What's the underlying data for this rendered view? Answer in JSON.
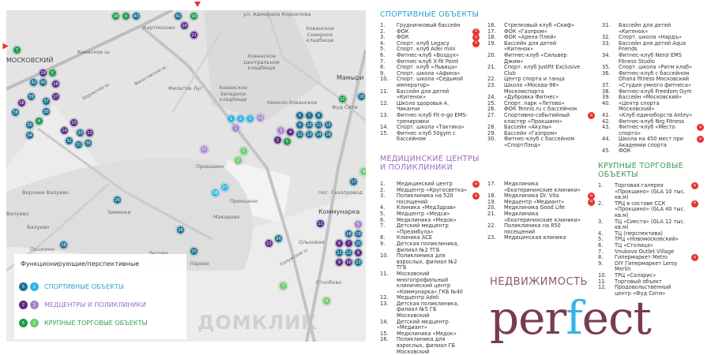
{
  "colors": {
    "sport_dark": "#1c6f90",
    "sport_light": "#2bb5e8",
    "med_dark": "#5a2a83",
    "med_light": "#a586cc",
    "shop_dark": "#1f9a48",
    "shop_light": "#6dcf6d",
    "sport_title": "#2aa3cb",
    "med_title": "#9a6cc2",
    "shop_title": "#3a9b5b",
    "perspective_badge": "#e8322f"
  },
  "map": {
    "places": [
      "Картмазово",
      "Киевское ш.",
      "Филатов Луг",
      "МОСКОВСКИЙ",
      "Хованское Северное кладбище",
      "Хованское Центральное кладбище",
      "Хованское Западное кладбище",
      "Мамыри",
      "Фуд Сити",
      "Николо-Хованское",
      "Прокшино",
      "Прокшино",
      "Макарово",
      "пос. Газопровод",
      "Коммунарка",
      "Ольховая",
      "Верхнее Валуево",
      "Валуево",
      "Валуево",
      "Зименки",
      "Летово",
      "Пушкино",
      "Ларево",
      "Столбово",
      "Боровское ш.",
      "Филатовское ш.",
      "ул. Адмирала Корнилова",
      "Калужское ш."
    ],
    "markers": [
      {
        "n": "18",
        "type": "shop_dark"
      },
      {
        "n": "9",
        "type": "shop_dark"
      },
      {
        "n": "43",
        "type": "sport_dark"
      },
      {
        "n": "41",
        "type": "sport_dark"
      },
      {
        "n": "20",
        "type": "med_dark"
      },
      {
        "n": "21",
        "type": "med_dark"
      },
      {
        "n": "10",
        "type": "shop_dark"
      },
      {
        "n": "7",
        "type": "shop_dark"
      },
      {
        "n": "19",
        "type": "med_dark"
      },
      {
        "n": "6",
        "type": "shop_dark"
      },
      {
        "n": "40",
        "type": "sport_dark"
      },
      {
        "n": "42",
        "type": "sport_dark"
      },
      {
        "n": "18",
        "type": "med_dark"
      },
      {
        "n": "17",
        "type": "med_dark"
      },
      {
        "n": "37",
        "type": "sport_dark"
      },
      {
        "n": "39",
        "type": "sport_dark"
      },
      {
        "n": "16",
        "type": "med_dark"
      },
      {
        "n": "38",
        "type": "sport_dark"
      },
      {
        "n": "30",
        "type": "sport_dark"
      },
      {
        "n": "4",
        "type": "shop_dark"
      },
      {
        "n": "35",
        "type": "sport_dark"
      },
      {
        "n": "34",
        "type": "sport_dark"
      },
      {
        "n": "15",
        "type": "med_dark"
      },
      {
        "n": "14",
        "type": "med_dark"
      },
      {
        "n": "33",
        "type": "sport_dark"
      },
      {
        "n": "32",
        "type": "sport_dark"
      },
      {
        "n": "31",
        "type": "sport_dark"
      },
      {
        "n": "36",
        "type": "sport_dark"
      },
      {
        "n": "13",
        "type": "med_dark"
      },
      {
        "n": "1",
        "type": "sport_light"
      },
      {
        "n": "2",
        "type": "sport_light"
      },
      {
        "n": "3",
        "type": "sport_light"
      },
      {
        "n": "23",
        "type": "med_light"
      },
      {
        "n": "1",
        "type": "med_light"
      },
      {
        "n": "6",
        "type": "sport_dark"
      },
      {
        "n": "7",
        "type": "sport_dark"
      },
      {
        "n": "8",
        "type": "sport_dark"
      },
      {
        "n": "9",
        "type": "sport_dark"
      },
      {
        "n": "10",
        "type": "sport_dark"
      },
      {
        "n": "11",
        "type": "sport_dark"
      },
      {
        "n": "12",
        "type": "sport_dark"
      },
      {
        "n": "13",
        "type": "sport_dark"
      },
      {
        "n": "14",
        "type": "sport_dark"
      },
      {
        "n": "15",
        "type": "sport_dark"
      },
      {
        "n": "16",
        "type": "sport_dark"
      },
      {
        "n": "2",
        "type": "med_dark"
      },
      {
        "n": "5",
        "type": "shop_dark"
      },
      {
        "n": "4",
        "type": "med_dark"
      },
      {
        "n": "3",
        "type": "med_light"
      },
      {
        "n": "1",
        "type": "shop_light"
      },
      {
        "n": "2",
        "type": "shop_light"
      },
      {
        "n": "22",
        "type": "med_light"
      },
      {
        "n": "26",
        "type": "sport_light"
      },
      {
        "n": "27",
        "type": "sport_light"
      },
      {
        "n": "4",
        "type": "shop_light"
      },
      {
        "n": "17",
        "type": "sport_dark"
      },
      {
        "n": "12",
        "type": "shop_dark"
      },
      {
        "n": "18",
        "type": "sport_dark"
      },
      {
        "n": "29",
        "type": "sport_dark"
      },
      {
        "n": "28",
        "type": "sport_dark"
      },
      {
        "n": "26",
        "type": "sport_dark"
      },
      {
        "n": "25",
        "type": "sport_dark"
      },
      {
        "n": "11",
        "type": "med_dark"
      },
      {
        "n": "12",
        "type": "med_dark"
      },
      {
        "n": "24",
        "type": "sport_dark"
      },
      {
        "n": "18",
        "type": "sport_dark"
      },
      {
        "n": "19",
        "type": "sport_dark"
      },
      {
        "n": "6",
        "type": "med_dark"
      },
      {
        "n": "7",
        "type": "med_dark"
      },
      {
        "n": "20",
        "type": "sport_dark"
      },
      {
        "n": "21",
        "type": "sport_dark"
      },
      {
        "n": "22",
        "type": "sport_dark"
      },
      {
        "n": "8",
        "type": "med_dark"
      },
      {
        "n": "9",
        "type": "med_dark"
      },
      {
        "n": "10",
        "type": "med_dark"
      },
      {
        "n": "23",
        "type": "sport_dark"
      },
      {
        "n": "7",
        "type": "shop_light"
      },
      {
        "n": "9",
        "type": "shop_light"
      },
      {
        "n": "5",
        "type": "med_light"
      }
    ]
  },
  "legend": {
    "title": "Функционирующие/перспективные",
    "rows": [
      {
        "label": "СПОРТИВНЫЕ ОБЪЕКТЫ",
        "dark_n": "5",
        "light_n": "1"
      },
      {
        "label": "МЕДЦЕНТРЫ И ПОЛИКЛИНИКИ",
        "dark_n": "2",
        "light_n": "1"
      },
      {
        "label": "КРУПНЫЕ ТОРГОВЫЕ ОБЪЕКТЫ",
        "dark_n": "5",
        "light_n": "1"
      }
    ],
    "watermark": "ДОМКЛИК"
  },
  "logo": {
    "text_a": "per",
    "text_f": "f",
    "text_b": "ect",
    "subtitle": "НЕДВИЖИМОСТЬ"
  },
  "sports": {
    "title": "СПОРТИВНЫЕ ОБЪЕКТЫ",
    "items": [
      {
        "n": "1.",
        "t": "Грудничковый бассейн"
      },
      {
        "n": "2.",
        "t": "ФОК",
        "p": true
      },
      {
        "n": "3.",
        "t": "ФОК",
        "p": true
      },
      {
        "n": "4.",
        "t": "Спорт. клуб Legacy",
        "p": true
      },
      {
        "n": "5.",
        "t": "Спорт. клуб Adei mini"
      },
      {
        "n": "6.",
        "t": "Фитнес-клуб «Воздух»"
      },
      {
        "n": "7.",
        "t": "Фитнес-клуб X-fit Point"
      },
      {
        "n": "8.",
        "t": "Спорт. клуб «Львица»"
      },
      {
        "n": "9.",
        "t": "Спорт. школа «Афина»"
      },
      {
        "n": "10.",
        "t": "Спорт. школа «Седьмой император»"
      },
      {
        "n": "11.",
        "t": "Бассейн для детей «Китенок»"
      },
      {
        "n": "12.",
        "t": "Школа здоровья А. Чиканчи"
      },
      {
        "n": "13.",
        "t": "Фитнес-клуб Fit-n-go EMS-тренировки"
      },
      {
        "n": "14.",
        "t": "Спорт. школа «Тактика»"
      },
      {
        "n": "15.",
        "t": "Фитнес клуб 50gym с бассейном"
      },
      {
        "n": "16.",
        "t": "Стрелковый клуб «Скиф»"
      },
      {
        "n": "17.",
        "t": "ФОК «Газпром»"
      },
      {
        "n": "18.",
        "t": "ФОК «Арена Плей»"
      },
      {
        "n": "19.",
        "t": "Бассейн для детей «Китенок»"
      },
      {
        "n": "20.",
        "t": "Фитнес-клуб «Сильвер Джим»"
      },
      {
        "n": "21.",
        "t": "Спорт. клуб JustFit Exclusive Club"
      },
      {
        "n": "22.",
        "t": "Центр спорта и танца"
      },
      {
        "n": "23.",
        "t": "Школа «Москва-98» Москомспорта"
      },
      {
        "n": "24.",
        "t": "«Дубровка Фитнес»"
      },
      {
        "n": "25.",
        "t": "Спорт. парк «Летово»"
      },
      {
        "n": "26.",
        "t": "ФОК Tennis.ru с бассейном"
      },
      {
        "n": "27.",
        "t": "Спортивно-событийный кластер «Прокшино»",
        "p": true
      },
      {
        "n": "28.",
        "t": "Бассейн «Акулы»"
      },
      {
        "n": "29.",
        "t": "Бассейн «Газпром»"
      },
      {
        "n": "30.",
        "t": "Фитнес-клуб с бассейном «СпортЛэнд»"
      },
      {
        "n": "31.",
        "t": "Бассейн для детей «Китенок»"
      },
      {
        "n": "32.",
        "t": "Спорт. школа «Нардъ»"
      },
      {
        "n": "33.",
        "t": "Бассейн для детей Aqua Friends"
      },
      {
        "n": "34.",
        "t": "Фитнес-клуб Nerol EMS Fitness Studio"
      },
      {
        "n": "35.",
        "t": "Спорт. школа «Ритм клаб»"
      },
      {
        "n": "36.",
        "t": "Фитнес-клуб с бассейном Ohana fitness Московский"
      },
      {
        "n": "37.",
        "t": "«Студия умного фитнеса»"
      },
      {
        "n": "38.",
        "t": "Фитнес-клуб Freedom Gym"
      },
      {
        "n": "39.",
        "t": "Бассейн «Московский»"
      },
      {
        "n": "40.",
        "t": "«Центр спорта Московский»"
      },
      {
        "n": "41.",
        "t": "«Клуб единоборств Antey»"
      },
      {
        "n": "42.",
        "t": "Фитнес-клуб Nrg Fitness"
      },
      {
        "n": "43.",
        "t": "Фитнес-клуб «Место спорта»",
        "p": true
      },
      {
        "n": "44.",
        "t": "Школа на 450 мест при Академии спорта",
        "p": true
      },
      {
        "n": "45.",
        "t": "ФОК"
      }
    ]
  },
  "medical": {
    "title": "МЕДИЦИНСКИЕ ЦЕНТРЫ И ПОЛИКЛИНИКИ",
    "items": [
      {
        "n": "1.",
        "t": "Медицинский центр",
        "p": true
      },
      {
        "n": "2.",
        "t": "Медцентр «Кругосветка»"
      },
      {
        "n": "3.",
        "t": "Поликлиника на 520 посещений",
        "p": true
      },
      {
        "n": "4.",
        "t": "Клиника «МедЗдрав»"
      },
      {
        "n": "5.",
        "t": "Медцентр «Медси»"
      },
      {
        "n": "6.",
        "t": "Медклиника «Медок»"
      },
      {
        "n": "7.",
        "t": "Детский медцентр «Преамбула»"
      },
      {
        "n": "8.",
        "t": "Клиника ACE"
      },
      {
        "n": "9.",
        "t": "Детская поликлиника, филиал №2 ТГБ"
      },
      {
        "n": "10.",
        "t": "Поликлиника для взрослых, филиал №2 ТГБ"
      },
      {
        "n": "11.",
        "t": "Московский многопрофильный клинический центр «Коммунарка» ГКБ №40"
      },
      {
        "n": "12.",
        "t": "Медцентр Adeli"
      },
      {
        "n": "13.",
        "t": "Детская поликлиника, филиал №5 ГБ Московский"
      },
      {
        "n": "14.",
        "t": "Детский медцентр «Медиант»"
      },
      {
        "n": "15.",
        "t": "Медклиника «Медок»"
      },
      {
        "n": "16.",
        "t": "Поликлиника для взрослых, филиал ГБ Московский"
      },
      {
        "n": "17.",
        "t": "Медклиника «Екатерининские клиники»"
      },
      {
        "n": "18.",
        "t": "Медклиника Dr. Vita",
        "p": true
      },
      {
        "n": "19.",
        "t": "Медцентр «Медиант»",
        "p": true
      },
      {
        "n": "20.",
        "t": "Медклиника Good Life"
      },
      {
        "n": "21.",
        "t": "Медклиника «Екатерининские клиники»"
      },
      {
        "n": "22.",
        "t": "Поликлиника на 850 посещений"
      },
      {
        "n": "23.",
        "t": "Медицинская клиника"
      }
    ]
  },
  "shopping": {
    "title": "КРУПНЫЕ ТОРГОВЫЕ ОБЪЕКТЫ",
    "items": [
      {
        "n": "1.",
        "t": "Торговая галерея «Прокшино» (GLA 10 тыс. кв.м)",
        "p": true
      },
      {
        "n": "2.",
        "t": "ТРЦ в составе ССК «Прокшино» (GLA 40 тыс. кв.м)",
        "p": true
      },
      {
        "n": "3.",
        "t": "ТЦ «Сиеста» (GLA 12 тыс. кв.м)"
      },
      {
        "n": "4.",
        "t": "ТЦ (перспектива)"
      },
      {
        "n": "5.",
        "t": "ТРЦ «Новомосковский»"
      },
      {
        "n": "6.",
        "t": "ТЦ «Столица»"
      },
      {
        "n": "7.",
        "t": "Vnukovo Outlet Village"
      },
      {
        "n": "8.",
        "t": "Гипермаркет Metro",
        "p": true
      },
      {
        "n": "9.",
        "t": "DIY Гипермаркет Leroy Merlin"
      },
      {
        "n": "10.",
        "t": "ТРЦ «Саларис»"
      },
      {
        "n": "11.",
        "t": "Торговый объект"
      },
      {
        "n": "12.",
        "t": "Продовольственный центр «Фуд Сити»"
      }
    ]
  }
}
